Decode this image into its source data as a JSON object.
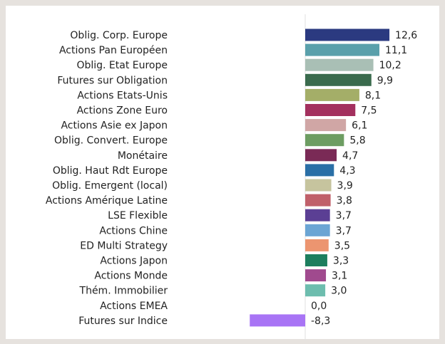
{
  "chart_data": {
    "type": "barh",
    "categories": [
      "Oblig. Corp. Europe",
      "Actions Pan Européen",
      "Oblig. Etat Europe",
      "Futures sur Obligation",
      "Actions Etats-Unis",
      "Actions Zone Euro",
      "Actions Asie ex Japon",
      "Oblig. Convert. Europe",
      "Monétaire",
      "Oblig. Haut Rdt Europe",
      "Oblig. Emergent (local)",
      "Actions Amérique Latine",
      "LSE Flexible",
      "Actions Chine",
      "ED Multi Strategy",
      "Actions Japon",
      "Actions Monde",
      "Thém. Immobilier",
      "Actions EMEA",
      "Futures sur Indice"
    ],
    "values": [
      12.6,
      11.1,
      10.2,
      9.9,
      8.1,
      7.5,
      6.1,
      5.8,
      4.7,
      4.3,
      3.9,
      3.8,
      3.7,
      3.7,
      3.5,
      3.3,
      3.1,
      3.0,
      0.0,
      -8.3
    ],
    "value_labels": [
      "12,6",
      "11,1",
      "10,2",
      "9,9",
      "8,1",
      "7,5",
      "6,1",
      "5,8",
      "4,7",
      "4,3",
      "3,9",
      "3,8",
      "3,7",
      "3,7",
      "3,5",
      "3,3",
      "3,1",
      "3,0",
      "0,0",
      "-8,3"
    ],
    "colors": [
      "#2b3a80",
      "#5aa0ab",
      "#a9bfb5",
      "#3a6b4d",
      "#a4ae68",
      "#a3305e",
      "#d0a6a5",
      "#6d9d62",
      "#7a2a56",
      "#2a6fa6",
      "#c6c49e",
      "#c0606a",
      "#5b3f94",
      "#6ba5d4",
      "#ec9570",
      "#1d7e5e",
      "#a04a8e",
      "#6dbdae",
      "#999999",
      "#a874f5"
    ]
  }
}
